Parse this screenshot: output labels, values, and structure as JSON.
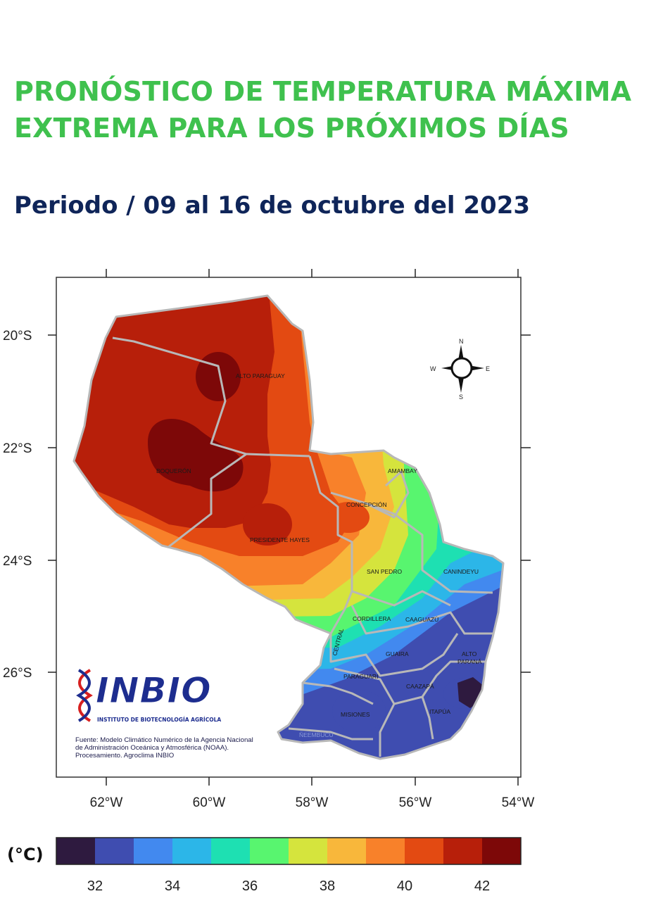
{
  "header": {
    "title_line1": "PRONÓSTICO DE TEMPERATURA MÁXIMA",
    "title_line2": "EXTREMA PARA LOS PRÓXIMOS DÍAS",
    "period": "Periodo / 09 al 16 de octubre del 2023"
  },
  "map": {
    "lon_labels": [
      "62°W",
      "60°W",
      "58°W",
      "56°W",
      "54°W"
    ],
    "lat_labels": [
      "20°S",
      "22°S",
      "24°S",
      "26°S"
    ],
    "regions": [
      "ALTO PARAGUAY",
      "BOQUERON",
      "PRESIDENTE HAYES",
      "CONCEPCION",
      "AMAMBAY",
      "SAN PEDRO",
      "CANINDEYU",
      "CORDILLERA",
      "CAAGUAZU",
      "CENTRAL",
      "GUAIRA",
      "ALTO PARANA",
      "PARAGUARI",
      "CAAZAPA",
      "MISIONES",
      "ITAPUA",
      "ÑEEMBUCU"
    ],
    "region_labels": {
      "alto_paraguay": "ALTO PARAGUAY",
      "boqueron": "BOQUERÓN",
      "presidente_hayes": "PRESIDENTE HAYES",
      "concepcion": "CONCEPCIÓN",
      "amambay": "AMAMBAY",
      "san_pedro": "SAN PEDRO",
      "canindeyu": "CANINDEYU",
      "cordillera": "CORDILLERA",
      "caaguazu": "CAAGUAZÚ",
      "central": "CENTRAL",
      "guaira": "GUAIRA",
      "alto_parana_1": "ALTO",
      "alto_parana_2": "PARANÁ",
      "paraguari": "PARAGUARI",
      "caazapa": "CAAZAPÁ",
      "misiones": "MISIONES",
      "itapua": "ITAPÚA",
      "neembucu": "ÑEEMBUCU"
    },
    "compass": {
      "n": "N",
      "s": "S",
      "e": "E",
      "w": "W"
    }
  },
  "logo": {
    "name": "INBIO",
    "subtitle": "INSTITUTO DE BIOTECNOLOGÍA AGRÍCOLA"
  },
  "source": {
    "line1": "Fuente: Modelo Climático Numérico de la Agencia Nacional",
    "line2": "de Administración Oceánica y Atmosférica (NOAA).",
    "line3": "Procesamiento. Agroclima INBIO"
  },
  "legend": {
    "unit": "(°C)",
    "ticks": [
      "32",
      "34",
      "36",
      "38",
      "40",
      "42"
    ],
    "colors": [
      "#2e1a3f",
      "#3f4db0",
      "#4289ef",
      "#2cb6e8",
      "#1ee0b2",
      "#58f56f",
      "#d5e43d",
      "#f8b73b",
      "#f8812a",
      "#e34a12",
      "#b71f0a",
      "#7d0808"
    ]
  }
}
